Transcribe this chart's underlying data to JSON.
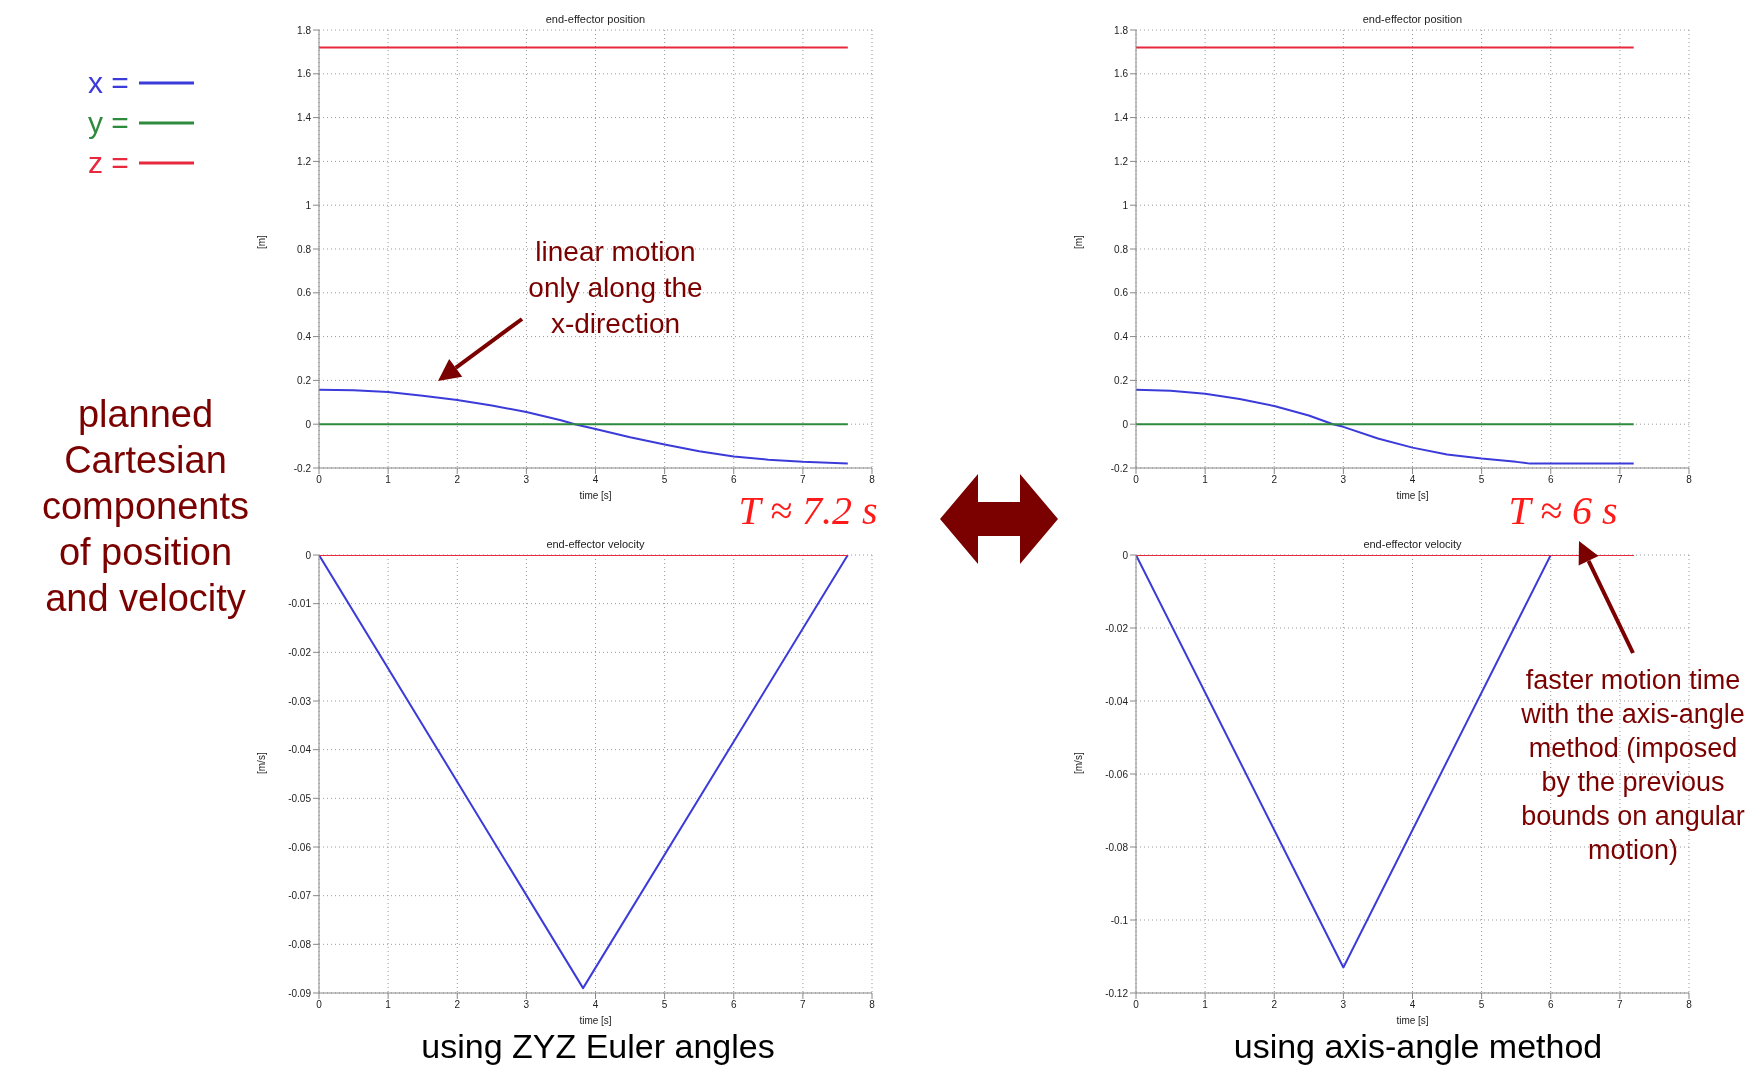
{
  "chart_data": [
    {
      "type": "line",
      "title": "end-effector position",
      "xlabel": "time [s]",
      "ylabel": "[m]",
      "xlim": [
        0,
        8
      ],
      "xticks": [
        0,
        1,
        2,
        3,
        4,
        5,
        6,
        7,
        8
      ],
      "ylim": [
        -0.2,
        1.8
      ],
      "yticks": [
        -0.2,
        0,
        0.2,
        0.4,
        0.6,
        0.8,
        1,
        1.2,
        1.4,
        1.6,
        1.8
      ],
      "grid": true,
      "legend": "top left",
      "line_style": "solid",
      "annotations": [
        "planned Cartesian components of position and velocity",
        "linear motion only along the x-direction",
        "T ≈ 7.2 s"
      ],
      "series": [
        {
          "name": "x =",
          "color": "#3b3bd9",
          "x": [
            0,
            0.5,
            1,
            1.5,
            2,
            2.5,
            3,
            3.5,
            3.7,
            4,
            4.5,
            5,
            5.5,
            6,
            6.5,
            7,
            7.65
          ],
          "values": [
            0.157,
            0.155,
            0.147,
            0.13,
            0.11,
            0.085,
            0.056,
            0.018,
            0,
            -0.022,
            -0.06,
            -0.093,
            -0.124,
            -0.148,
            -0.162,
            -0.172,
            -0.18
          ]
        },
        {
          "name": "y =",
          "color": "#2e8b3e",
          "x": [
            0,
            7.65
          ],
          "values": [
            0,
            0
          ]
        },
        {
          "name": "z =",
          "color": "#e8283c",
          "x": [
            0,
            7.65
          ],
          "values": [
            1.72,
            1.72
          ]
        }
      ]
    },
    {
      "type": "line",
      "title": "end-effector position",
      "xlabel": "time [s]",
      "ylabel": "[m]",
      "xlim": [
        0,
        8
      ],
      "xticks": [
        0,
        1,
        2,
        3,
        4,
        5,
        6,
        7,
        8
      ],
      "ylim": [
        -0.2,
        1.8
      ],
      "yticks": [
        -0.2,
        0,
        0.2,
        0.4,
        0.6,
        0.8,
        1,
        1.2,
        1.4,
        1.6,
        1.8
      ],
      "grid": true,
      "line_style": "solid",
      "annotations": [
        "T ≈ 6 s"
      ],
      "series": [
        {
          "color": "#3b3bd9",
          "x": [
            0,
            0.5,
            1,
            1.5,
            2,
            2.5,
            2.85,
            3,
            3.5,
            4,
            4.5,
            5,
            5.5,
            5.7,
            6,
            7.2
          ],
          "values": [
            0.157,
            0.153,
            0.139,
            0.115,
            0.083,
            0.04,
            0,
            -0.012,
            -0.065,
            -0.107,
            -0.138,
            -0.157,
            -0.172,
            -0.18,
            -0.18,
            -0.18
          ]
        },
        {
          "color": "#2e8b3e",
          "x": [
            0,
            7.2
          ],
          "values": [
            0,
            0
          ]
        },
        {
          "color": "#e8283c",
          "x": [
            0,
            7.2
          ],
          "values": [
            1.72,
            1.72
          ]
        }
      ]
    },
    {
      "type": "line",
      "title": "end-effector velocity",
      "xlabel": "time [s]",
      "ylabel": "[m/s]",
      "xlim": [
        0,
        8
      ],
      "xticks": [
        0,
        1,
        2,
        3,
        4,
        5,
        6,
        7,
        8
      ],
      "ylim": [
        -0.09,
        0
      ],
      "yticks": [
        -0.09,
        -0.08,
        -0.07,
        -0.06,
        -0.05,
        -0.04,
        -0.03,
        -0.02,
        -0.01,
        0
      ],
      "grid": true,
      "line_style": "solid",
      "annotations": [
        "using ZYZ Euler angles"
      ],
      "series": [
        {
          "color": "#3b3bd9",
          "x": [
            0,
            3.82,
            7.65
          ],
          "values": [
            0,
            -0.089,
            0
          ]
        },
        {
          "color": "#e8283c",
          "x": [
            0,
            7.65
          ],
          "values": [
            0,
            0
          ]
        }
      ]
    },
    {
      "type": "line",
      "title": "end-effector velocity",
      "xlabel": "time [s]",
      "ylabel": "[m/s]",
      "xlim": [
        0,
        8
      ],
      "xticks": [
        0,
        1,
        2,
        3,
        4,
        5,
        6,
        7,
        8
      ],
      "ylim": [
        -0.12,
        0
      ],
      "yticks": [
        -0.12,
        -0.1,
        -0.08,
        -0.06,
        -0.04,
        -0.02,
        0
      ],
      "grid": true,
      "line_style": "solid",
      "annotations": [
        "faster motion time with the axis-angle method (imposed by the previous bounds on angular motion)",
        "using axis-angle method"
      ],
      "series": [
        {
          "color": "#3b3bd9",
          "x": [
            0,
            3,
            6,
            7.2
          ],
          "values": [
            0,
            -0.113,
            0,
            0
          ]
        },
        {
          "color": "#e8283c",
          "x": [
            0,
            7.2
          ],
          "values": [
            0,
            0
          ]
        }
      ]
    }
  ]
}
